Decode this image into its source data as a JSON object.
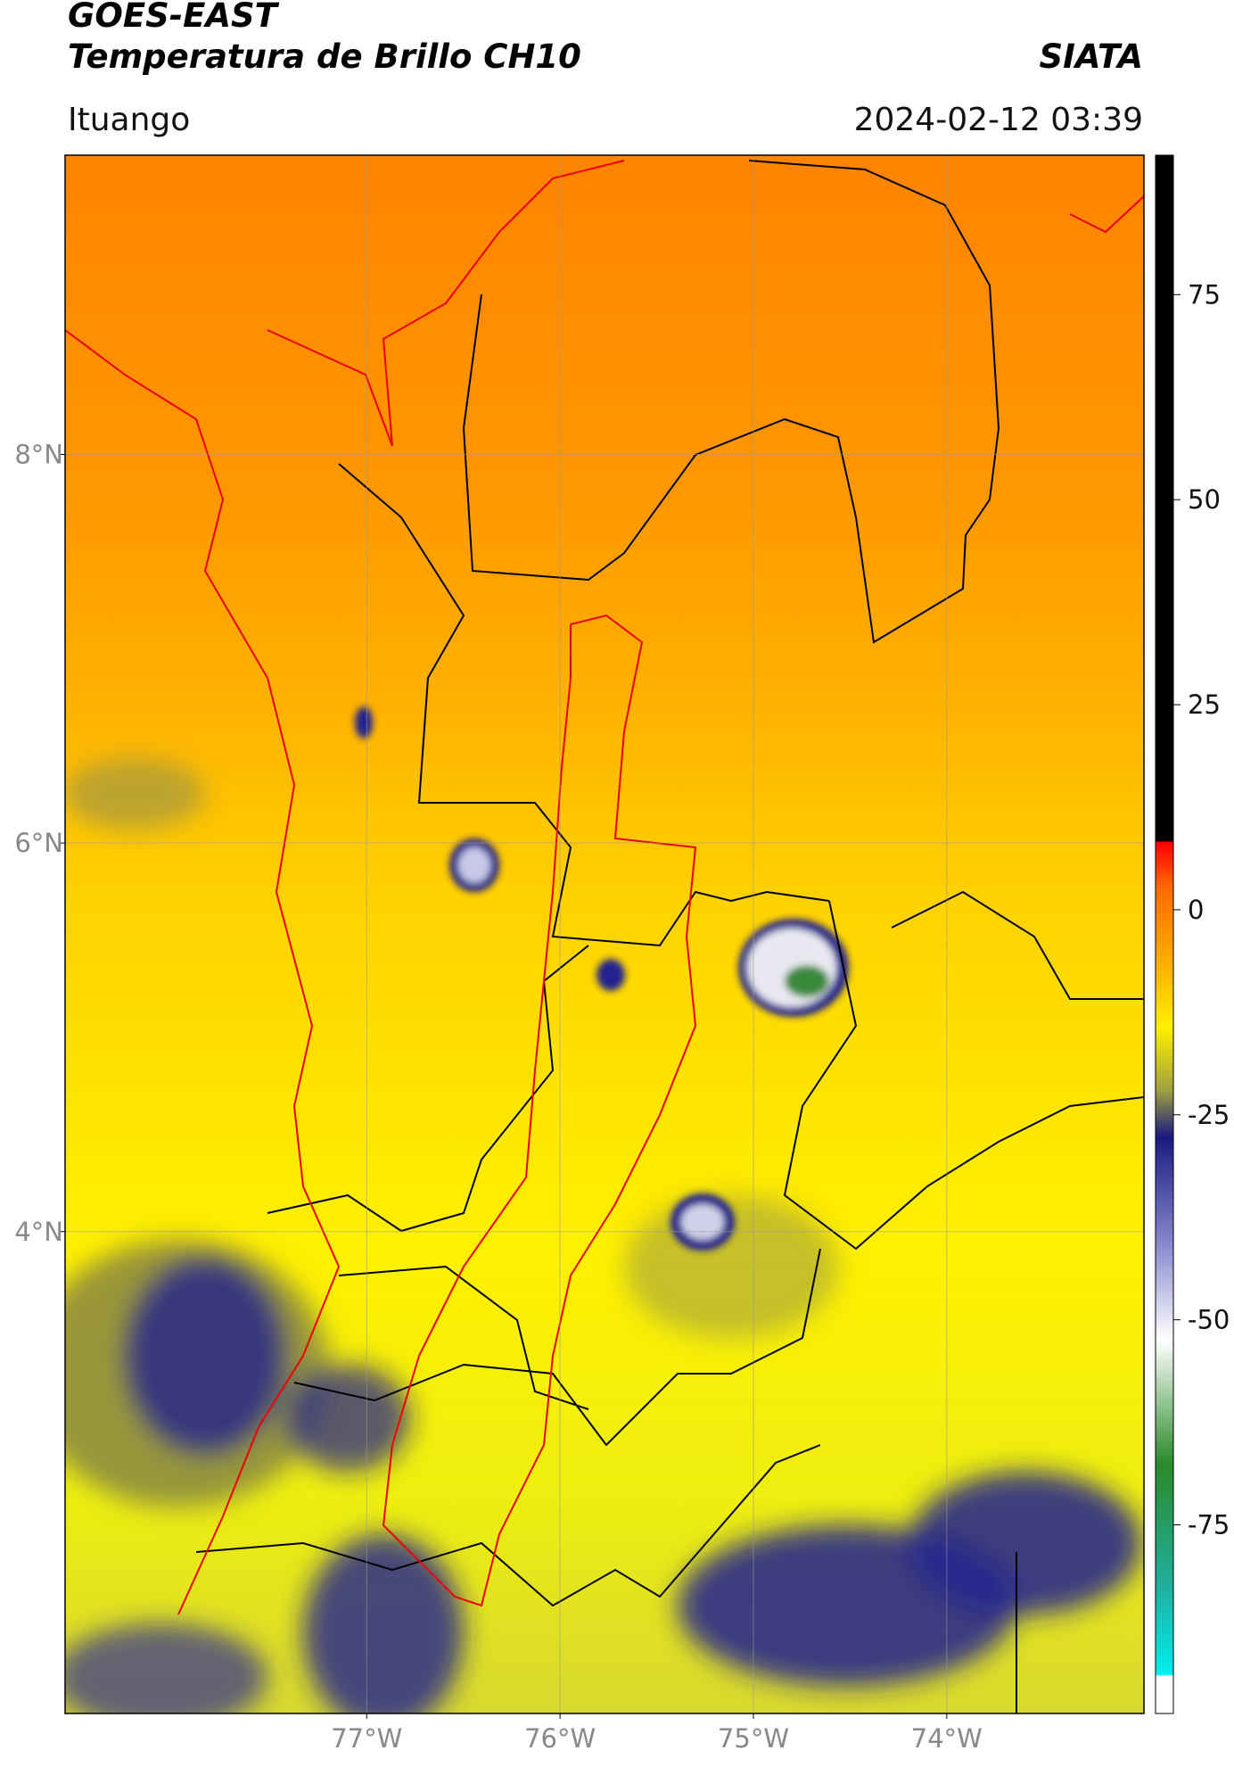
{
  "header": {
    "line1": "GOES-EAST",
    "line2": "Temperatura de Brillo CH10",
    "source": "SIATA",
    "location": "Ituango",
    "datetime": "2024-02-12 03:39"
  },
  "map": {
    "xlim": [
      -78.56,
      -72.98
    ],
    "ylim": [
      1.52,
      9.54
    ],
    "lon_ticks": [
      {
        "value": -77,
        "label": "77°W"
      },
      {
        "value": -76,
        "label": "76°W"
      },
      {
        "value": -75,
        "label": "75°W"
      },
      {
        "value": -74,
        "label": "74°W"
      }
    ],
    "lat_ticks": [
      {
        "value": 8,
        "label": "8°N"
      },
      {
        "value": 6,
        "label": "6°N"
      },
      {
        "value": 4,
        "label": "4°N"
      }
    ]
  },
  "colorbar": {
    "lim": [
      -98,
      92
    ],
    "ticks": [
      75,
      50,
      25,
      0,
      -25,
      -50,
      -75
    ]
  }
}
